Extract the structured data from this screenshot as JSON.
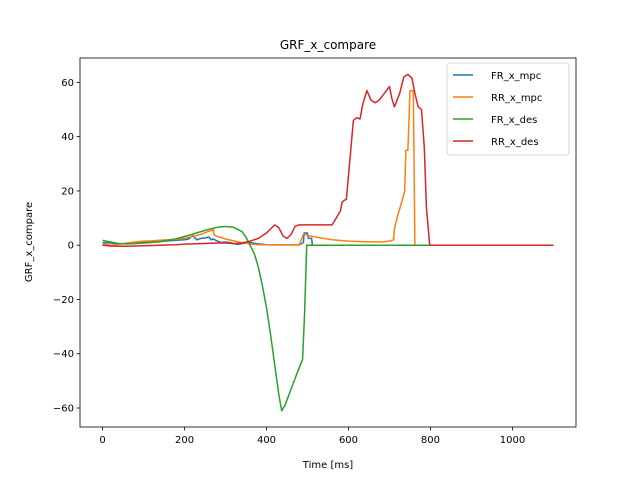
{
  "chart_data": {
    "type": "line",
    "title": "GRF_x_compare",
    "xlabel": "Time [ms]",
    "ylabel": "GRF_x_compare",
    "xlim": [
      -55,
      1155
    ],
    "ylim": [
      -67,
      69
    ],
    "xticks": [
      0,
      200,
      400,
      600,
      800,
      1000
    ],
    "yticks": [
      -60,
      -40,
      -20,
      0,
      20,
      40,
      60
    ],
    "grid": false,
    "legend_position": "top-right",
    "series": [
      {
        "name": "FR_x_mpc",
        "color": "#1f77b4",
        "points": [
          [
            0,
            1
          ],
          [
            20,
            0.8
          ],
          [
            40,
            0.5
          ],
          [
            60,
            0.7
          ],
          [
            80,
            1
          ],
          [
            100,
            1.2
          ],
          [
            120,
            1.4
          ],
          [
            140,
            1.4
          ],
          [
            160,
            1.6
          ],
          [
            180,
            1.8
          ],
          [
            200,
            2
          ],
          [
            210,
            2.3
          ],
          [
            220,
            3.5
          ],
          [
            230,
            2
          ],
          [
            240,
            2.5
          ],
          [
            250,
            2.7
          ],
          [
            260,
            3
          ],
          [
            265,
            2
          ],
          [
            270,
            2.3
          ],
          [
            280,
            1.5
          ],
          [
            290,
            1
          ],
          [
            300,
            1.2
          ],
          [
            310,
            1
          ],
          [
            320,
            0.6
          ],
          [
            330,
            0.3
          ],
          [
            340,
            0.6
          ],
          [
            360,
            1
          ],
          [
            380,
            0.5
          ],
          [
            400,
            0.2
          ],
          [
            420,
            0.1
          ],
          [
            440,
            0.1
          ],
          [
            480,
            0.1
          ],
          [
            490,
            1
          ],
          [
            492,
            4.5
          ],
          [
            500,
            4.5
          ],
          [
            502,
            2.5
          ],
          [
            510,
            2.5
          ],
          [
            512,
            0
          ],
          [
            520,
            0
          ],
          [
            600,
            0
          ],
          [
            700,
            0
          ],
          [
            800,
            0
          ],
          [
            900,
            0
          ],
          [
            1000,
            0
          ],
          [
            1100,
            0
          ]
        ]
      },
      {
        "name": "RR_x_mpc",
        "color": "#ff7f0e",
        "points": [
          [
            0,
            0.5
          ],
          [
            20,
            0
          ],
          [
            40,
            0.3
          ],
          [
            60,
            0.8
          ],
          [
            80,
            1.2
          ],
          [
            100,
            1.5
          ],
          [
            120,
            1.6
          ],
          [
            140,
            1.8
          ],
          [
            160,
            2
          ],
          [
            180,
            2.2
          ],
          [
            200,
            2.6
          ],
          [
            220,
            3.2
          ],
          [
            240,
            4
          ],
          [
            250,
            4.6
          ],
          [
            260,
            5.2
          ],
          [
            268,
            5.5
          ],
          [
            270,
            6.2
          ],
          [
            272,
            3.8
          ],
          [
            280,
            3.2
          ],
          [
            290,
            2.8
          ],
          [
            300,
            2.3
          ],
          [
            320,
            1.6
          ],
          [
            340,
            1
          ],
          [
            360,
            0.5
          ],
          [
            380,
            0.2
          ],
          [
            400,
            0.1
          ],
          [
            420,
            0.1
          ],
          [
            480,
            0.1
          ],
          [
            490,
            4
          ],
          [
            495,
            4
          ],
          [
            500,
            3.6
          ],
          [
            520,
            3
          ],
          [
            540,
            2.5
          ],
          [
            560,
            2
          ],
          [
            600,
            1.5
          ],
          [
            640,
            1.3
          ],
          [
            680,
            1.2
          ],
          [
            700,
            1.5
          ],
          [
            710,
            2
          ],
          [
            712,
            6
          ],
          [
            720,
            11
          ],
          [
            730,
            16
          ],
          [
            737,
            20
          ],
          [
            740,
            35
          ],
          [
            745,
            35
          ],
          [
            750,
            57
          ],
          [
            755,
            57
          ],
          [
            758,
            57
          ],
          [
            762,
            0
          ],
          [
            800,
            0
          ],
          [
            900,
            0
          ],
          [
            1000,
            0
          ],
          [
            1100,
            0
          ]
        ]
      },
      {
        "name": "FR_x_des",
        "color": "#2ca02c",
        "points": [
          [
            0,
            1.8
          ],
          [
            20,
            1.2
          ],
          [
            40,
            0.6
          ],
          [
            60,
            0.5
          ],
          [
            80,
            0.6
          ],
          [
            100,
            0.8
          ],
          [
            120,
            1
          ],
          [
            140,
            1.3
          ],
          [
            160,
            1.8
          ],
          [
            180,
            2.4
          ],
          [
            200,
            3.2
          ],
          [
            220,
            4.1
          ],
          [
            240,
            5
          ],
          [
            260,
            5.9
          ],
          [
            280,
            6.6
          ],
          [
            300,
            6.9
          ],
          [
            320,
            6.6
          ],
          [
            340,
            5
          ],
          [
            350,
            3
          ],
          [
            360,
            0
          ],
          [
            370,
            -3
          ],
          [
            380,
            -8
          ],
          [
            390,
            -15
          ],
          [
            400,
            -23
          ],
          [
            410,
            -33
          ],
          [
            420,
            -44
          ],
          [
            430,
            -55
          ],
          [
            437,
            -61
          ],
          [
            445,
            -59
          ],
          [
            460,
            -53
          ],
          [
            475,
            -47
          ],
          [
            488,
            -42
          ],
          [
            493,
            -25
          ],
          [
            498,
            0
          ],
          [
            510,
            0
          ],
          [
            600,
            0
          ],
          [
            700,
            0
          ],
          [
            800,
            0
          ],
          [
            900,
            0
          ],
          [
            1000,
            0
          ],
          [
            1100,
            0
          ]
        ]
      },
      {
        "name": "RR_x_des",
        "color": "#d62728",
        "points": [
          [
            0,
            0
          ],
          [
            20,
            -0.3
          ],
          [
            40,
            -0.4
          ],
          [
            60,
            -0.4
          ],
          [
            80,
            -0.3
          ],
          [
            100,
            -0.2
          ],
          [
            120,
            -0.1
          ],
          [
            140,
            0
          ],
          [
            160,
            0.1
          ],
          [
            180,
            0.2
          ],
          [
            200,
            0.4
          ],
          [
            220,
            0.5
          ],
          [
            240,
            0.6
          ],
          [
            260,
            0.7
          ],
          [
            280,
            0.8
          ],
          [
            300,
            0.8
          ],
          [
            320,
            0.6
          ],
          [
            340,
            0.8
          ],
          [
            360,
            1.5
          ],
          [
            380,
            2.5
          ],
          [
            400,
            4.5
          ],
          [
            420,
            7.5
          ],
          [
            430,
            6.5
          ],
          [
            440,
            3.5
          ],
          [
            450,
            2.5
          ],
          [
            460,
            4
          ],
          [
            470,
            7
          ],
          [
            480,
            7.5
          ],
          [
            500,
            7.5
          ],
          [
            520,
            7.5
          ],
          [
            540,
            7.5
          ],
          [
            560,
            7.5
          ],
          [
            570,
            10
          ],
          [
            580,
            12.5
          ],
          [
            585,
            16
          ],
          [
            595,
            17
          ],
          [
            605,
            34
          ],
          [
            612,
            46
          ],
          [
            620,
            47
          ],
          [
            628,
            46.5
          ],
          [
            635,
            52
          ],
          [
            645,
            57
          ],
          [
            655,
            53.5
          ],
          [
            665,
            52.5
          ],
          [
            675,
            53.5
          ],
          [
            690,
            56.5
          ],
          [
            700,
            58.5
          ],
          [
            706,
            54
          ],
          [
            712,
            51
          ],
          [
            725,
            56
          ],
          [
            735,
            62
          ],
          [
            745,
            63
          ],
          [
            755,
            61.5
          ],
          [
            762,
            56
          ],
          [
            770,
            51
          ],
          [
            778,
            50
          ],
          [
            785,
            36
          ],
          [
            790,
            14
          ],
          [
            798,
            0
          ],
          [
            900,
            0
          ],
          [
            1000,
            0
          ],
          [
            1100,
            0
          ]
        ]
      }
    ]
  }
}
